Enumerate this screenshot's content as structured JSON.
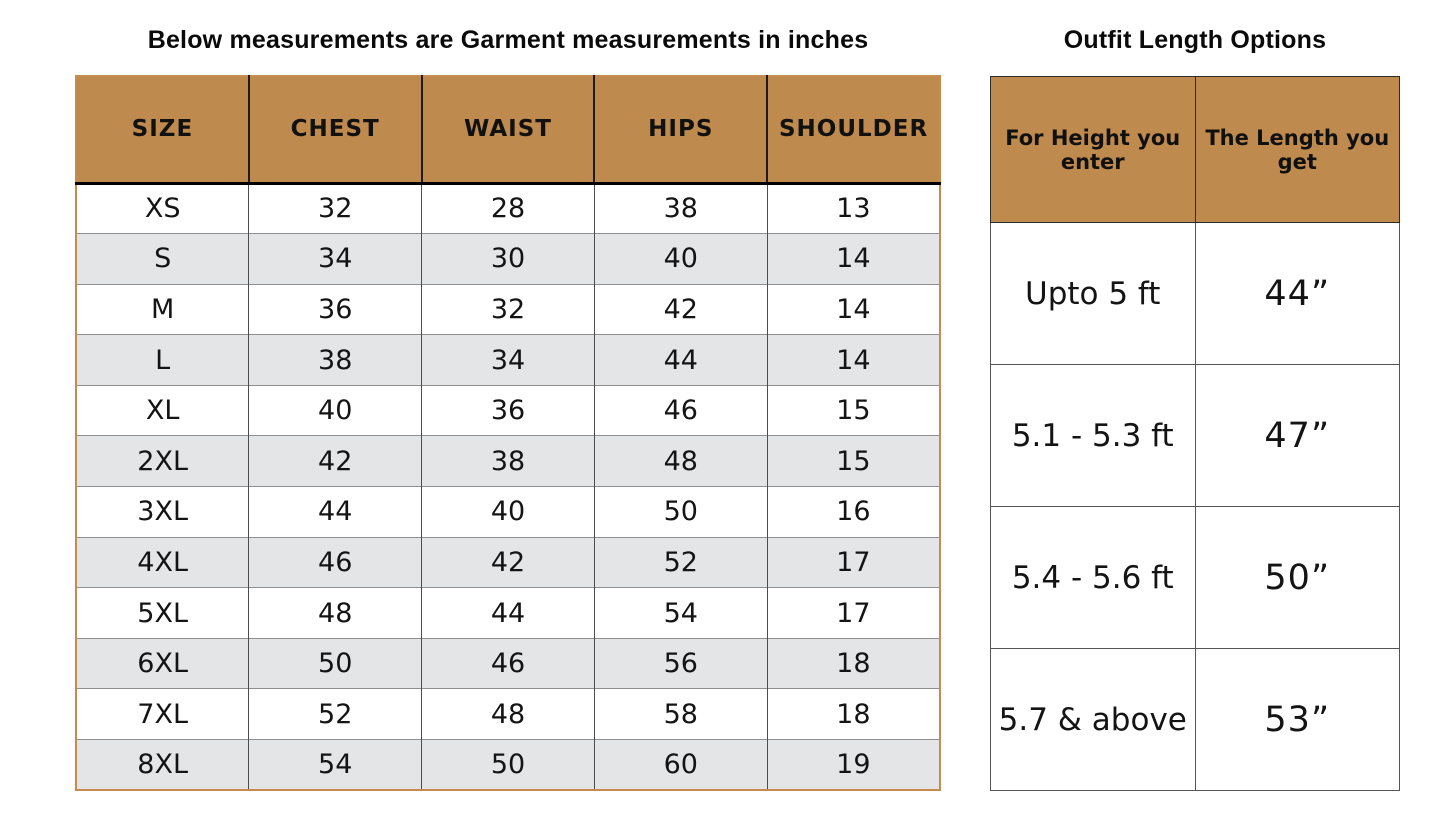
{
  "colors": {
    "header_bg": "#BF8A4D",
    "alt_row_bg": "#E3E5E7",
    "row_bg": "#FFFFFF",
    "outer_border": "#C68C4F",
    "grid_line": "#4D4D4D",
    "text": "#111111"
  },
  "chart_data": [
    {
      "type": "table",
      "title": "Below measurements are Garment measurements in inches",
      "columns": [
        "SIZE",
        "CHEST",
        "WAIST",
        "HIPS",
        "SHOULDER"
      ],
      "rows": [
        [
          "XS",
          "32",
          "28",
          "38",
          "13"
        ],
        [
          "S",
          "34",
          "30",
          "40",
          "14"
        ],
        [
          "M",
          "36",
          "32",
          "42",
          "14"
        ],
        [
          "L",
          "38",
          "34",
          "44",
          "14"
        ],
        [
          "XL",
          "40",
          "36",
          "46",
          "15"
        ],
        [
          "2XL",
          "42",
          "38",
          "48",
          "15"
        ],
        [
          "3XL",
          "44",
          "40",
          "50",
          "16"
        ],
        [
          "4XL",
          "46",
          "42",
          "52",
          "17"
        ],
        [
          "5XL",
          "48",
          "44",
          "54",
          "17"
        ],
        [
          "6XL",
          "50",
          "46",
          "56",
          "18"
        ],
        [
          "7XL",
          "52",
          "48",
          "58",
          "18"
        ],
        [
          "8XL",
          "54",
          "50",
          "60",
          "19"
        ]
      ],
      "layout": "alternating row shading, tan header band, header underlined in black"
    },
    {
      "type": "table",
      "title": "Outfit Length Options",
      "columns": [
        "For Height you enter",
        "The Length you get"
      ],
      "rows": [
        [
          "Upto 5 ft",
          "44”"
        ],
        [
          "5.1 - 5.3 ft",
          "47”"
        ],
        [
          "5.4 - 5.6 ft",
          "50”"
        ],
        [
          "5.7 & above",
          "53”"
        ]
      ],
      "layout": "tan header band, white body cells, thin dark grid"
    }
  ]
}
